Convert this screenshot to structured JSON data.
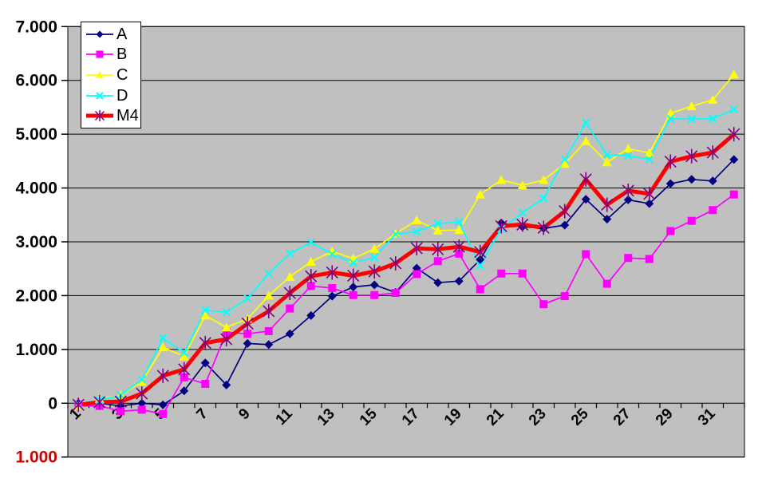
{
  "chart_data": {
    "type": "line",
    "title": "",
    "xlabel": "",
    "ylabel": "",
    "ylim": [
      -1,
      7
    ],
    "grid": true,
    "plot_bg_color": "#C0C0C0",
    "gridline_color": "#000000",
    "negative_tick_color": "#CC0000",
    "y_ticks": [
      {
        "label": "7.000",
        "value": 7,
        "color": "#000000"
      },
      {
        "label": "6.000",
        "value": 6,
        "color": "#000000"
      },
      {
        "label": "5.000",
        "value": 5,
        "color": "#000000"
      },
      {
        "label": "4.000",
        "value": 4,
        "color": "#000000"
      },
      {
        "label": "3.000",
        "value": 3,
        "color": "#000000"
      },
      {
        "label": "2.000",
        "value": 2,
        "color": "#000000"
      },
      {
        "label": "1.000",
        "value": 1,
        "color": "#000000"
      },
      {
        "label": "0",
        "value": 0,
        "color": "#000000"
      },
      {
        "label": "1.000",
        "value": -1,
        "color": "#CC0000"
      }
    ],
    "x": [
      1,
      2,
      3,
      4,
      5,
      6,
      7,
      8,
      9,
      10,
      11,
      12,
      13,
      14,
      15,
      16,
      17,
      18,
      19,
      20,
      21,
      22,
      23,
      24,
      25,
      26,
      27,
      28,
      29,
      30,
      31,
      32
    ],
    "x_ticks": [
      {
        "label": "1",
        "at": 1
      },
      {
        "label": "3",
        "at": 3
      },
      {
        "label": "5",
        "at": 5
      },
      {
        "label": "7",
        "at": 7
      },
      {
        "label": "9",
        "at": 9
      },
      {
        "label": "11",
        "at": 11
      },
      {
        "label": "13",
        "at": 13
      },
      {
        "label": "15",
        "at": 15
      },
      {
        "label": "17",
        "at": 17
      },
      {
        "label": "19",
        "at": 19
      },
      {
        "label": "21",
        "at": 21
      },
      {
        "label": "23",
        "at": 23
      },
      {
        "label": "25",
        "at": 25
      },
      {
        "label": "27",
        "at": 27
      },
      {
        "label": "29",
        "at": 29
      },
      {
        "label": "31",
        "at": 31
      }
    ],
    "legend_position": "top-left",
    "series": [
      {
        "name": "A",
        "color": "#000080",
        "marker": "diamond",
        "line_width": 1.7,
        "values": [
          0.0,
          0.0,
          -0.05,
          0.0,
          -0.03,
          0.23,
          0.75,
          0.34,
          1.11,
          1.09,
          1.29,
          1.63,
          1.99,
          2.16,
          2.2,
          2.06,
          2.51,
          2.24,
          2.27,
          2.67,
          3.35,
          3.28,
          3.25,
          3.31,
          3.79,
          3.42,
          3.78,
          3.71,
          4.08,
          4.16,
          4.13,
          4.53
        ]
      },
      {
        "name": "B",
        "color": "#FF00FF",
        "marker": "square",
        "line_width": 1.7,
        "values": [
          -0.05,
          -0.05,
          -0.15,
          -0.12,
          -0.2,
          0.48,
          0.36,
          1.32,
          1.29,
          1.34,
          1.76,
          2.18,
          2.14,
          2.01,
          2.01,
          2.05,
          2.4,
          2.64,
          2.78,
          2.12,
          2.41,
          2.41,
          1.84,
          1.99,
          2.77,
          2.22,
          2.7,
          2.68,
          3.2,
          3.39,
          3.59,
          3.88
        ]
      },
      {
        "name": "C",
        "color": "#FFFF00",
        "marker": "triangle",
        "line_width": 1.7,
        "values": [
          -0.05,
          0.08,
          0.15,
          0.4,
          1.04,
          0.87,
          1.63,
          1.41,
          1.57,
          2.0,
          2.35,
          2.63,
          2.82,
          2.69,
          2.87,
          3.15,
          3.4,
          3.21,
          3.22,
          3.88,
          4.15,
          4.05,
          4.15,
          4.45,
          4.87,
          4.48,
          4.73,
          4.65,
          5.39,
          5.52,
          5.64,
          6.11
        ]
      },
      {
        "name": "D",
        "color": "#00FFFF",
        "marker": "x",
        "line_width": 1.7,
        "values": [
          -0.02,
          0.06,
          0.15,
          0.44,
          1.21,
          0.94,
          1.73,
          1.69,
          1.95,
          2.41,
          2.78,
          2.99,
          2.77,
          2.61,
          2.71,
          3.14,
          3.19,
          3.34,
          3.37,
          2.56,
          3.24,
          3.54,
          3.81,
          4.53,
          5.21,
          4.62,
          4.6,
          4.53,
          5.29,
          5.28,
          5.29,
          5.46
        ]
      },
      {
        "name": "M4",
        "color": "#FF0000",
        "marker": "star",
        "marker_color": "#800080",
        "line_width": 5,
        "values": [
          -0.03,
          0.02,
          0.03,
          0.18,
          0.51,
          0.63,
          1.12,
          1.19,
          1.48,
          1.71,
          2.05,
          2.36,
          2.43,
          2.37,
          2.45,
          2.6,
          2.88,
          2.86,
          2.91,
          2.81,
          3.29,
          3.32,
          3.26,
          3.57,
          4.16,
          3.69,
          3.95,
          3.89,
          4.49,
          4.59,
          4.66,
          5.0
        ]
      }
    ]
  }
}
